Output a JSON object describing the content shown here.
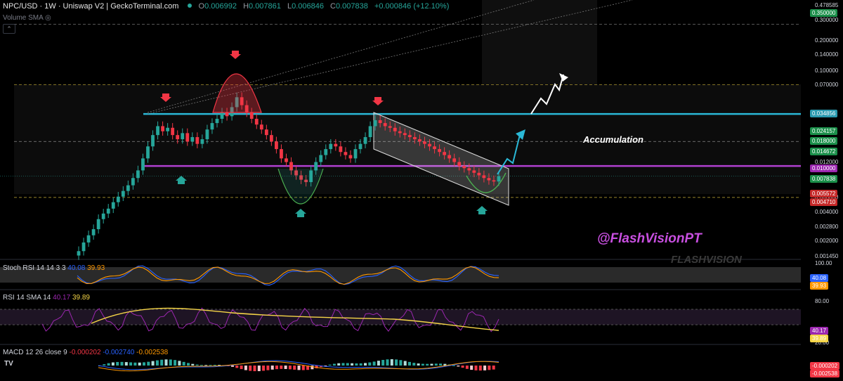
{
  "header": {
    "symbol": "NPC/USD · 1W · Uniswap V2 | GeckoTerminal.com",
    "open_label": "O",
    "open": "0.006992",
    "high_label": "H",
    "high": "0.007861",
    "low_label": "L",
    "low": "0.006846",
    "close_label": "C",
    "close": "0.007838",
    "change": "+0.000846 (+12.10%)",
    "volume_label": "Volume SMA"
  },
  "indicators": {
    "stoch": {
      "label": "Stoch RSI 14 14 3 3",
      "k": "40.08",
      "d": "39.93"
    },
    "rsi": {
      "label": "RSI 14 SMA 14",
      "rsi": "40.17",
      "sma": "39.89"
    },
    "macd": {
      "label": "MACD 12 26 close 9",
      "hist": "-0.000202",
      "macd": "-0.002740",
      "signal": "-0.002538"
    }
  },
  "price_axis": {
    "ticks": [
      "0.478585",
      "0.300000",
      "0.200000",
      "0.140000",
      "0.100000",
      "0.070000",
      "0.012000",
      "0.006000",
      "0.004000",
      "0.002800",
      "0.002000",
      "0.001450"
    ],
    "badges": [
      {
        "text": "0.350000",
        "color": "#1b8f4a"
      },
      {
        "text": "0.034856",
        "color": "#2a9bb0"
      },
      {
        "text": "0.024157",
        "color": "#1b8f4a"
      },
      {
        "text": "0.018000",
        "color": "#1b8f4a"
      },
      {
        "text": "0.014672",
        "color": "#1b8f4a"
      },
      {
        "text": "0.010000",
        "color": "#9c27b0"
      },
      {
        "text": "0.007838",
        "color": "#1b8f4a"
      },
      {
        "text": "0.005572",
        "color": "#c62828"
      },
      {
        "text": "0.004710",
        "color": "#c62828"
      }
    ]
  },
  "stoch_axis": {
    "ticks": [
      "100.00"
    ],
    "badges": [
      {
        "text": "40.08",
        "color": "#2962ff"
      },
      {
        "text": "39.93",
        "color": "#ff9800"
      }
    ]
  },
  "rsi_axis": {
    "ticks": [
      "80.00",
      "20.00"
    ],
    "badges": [
      {
        "text": "40.17",
        "color": "#9c27b0"
      },
      {
        "text": "39.89",
        "color": "#f5d547"
      }
    ]
  },
  "macd_axis": {
    "badges": [
      {
        "text": "-0.000202",
        "color": "#f23645"
      },
      {
        "text": "-0.002538",
        "color": "#f23645"
      }
    ]
  },
  "annotations": {
    "accumulation": "Accumulation",
    "handle": "@FlashVisionPT",
    "watermark": "FLASHVISION"
  },
  "logo": "TV",
  "colors": {
    "up": "#26a69a",
    "down": "#f23645",
    "resistance": "#2ab8d6",
    "support": "#b040d0",
    "channel": "#ffffff"
  },
  "chart_data": {
    "type": "candlestick",
    "title": "NPC/USD · 1W · Uniswap V2",
    "scale": "log",
    "ylim": [
      0.0012,
      0.5
    ],
    "levels": [
      0.034856,
      0.024157,
      0.018,
      0.014672,
      0.01,
      0.007838,
      0.005572,
      0.00471
    ],
    "close_series": [
      0.0013,
      0.0016,
      0.0019,
      0.0022,
      0.0028,
      0.0032,
      0.0036,
      0.0042,
      0.0048,
      0.0055,
      0.0063,
      0.0075,
      0.009,
      0.012,
      0.016,
      0.021,
      0.026,
      0.023,
      0.025,
      0.021,
      0.019,
      0.022,
      0.018,
      0.02,
      0.017,
      0.019,
      0.024,
      0.028,
      0.031,
      0.036,
      0.033,
      0.041,
      0.052,
      0.043,
      0.036,
      0.031,
      0.027,
      0.024,
      0.021,
      0.018,
      0.015,
      0.012,
      0.011,
      0.009,
      0.008,
      0.0072,
      0.0068,
      0.009,
      0.011,
      0.013,
      0.015,
      0.017,
      0.016,
      0.014,
      0.013,
      0.012,
      0.015,
      0.017,
      0.02,
      0.026,
      0.03,
      0.028,
      0.026,
      0.025,
      0.023,
      0.022,
      0.021,
      0.02,
      0.019,
      0.018,
      0.017,
      0.016,
      0.015,
      0.014,
      0.013,
      0.012,
      0.011,
      0.01,
      0.0095,
      0.009,
      0.0085,
      0.008,
      0.0075,
      0.0071,
      0.0069,
      0.007838
    ]
  }
}
